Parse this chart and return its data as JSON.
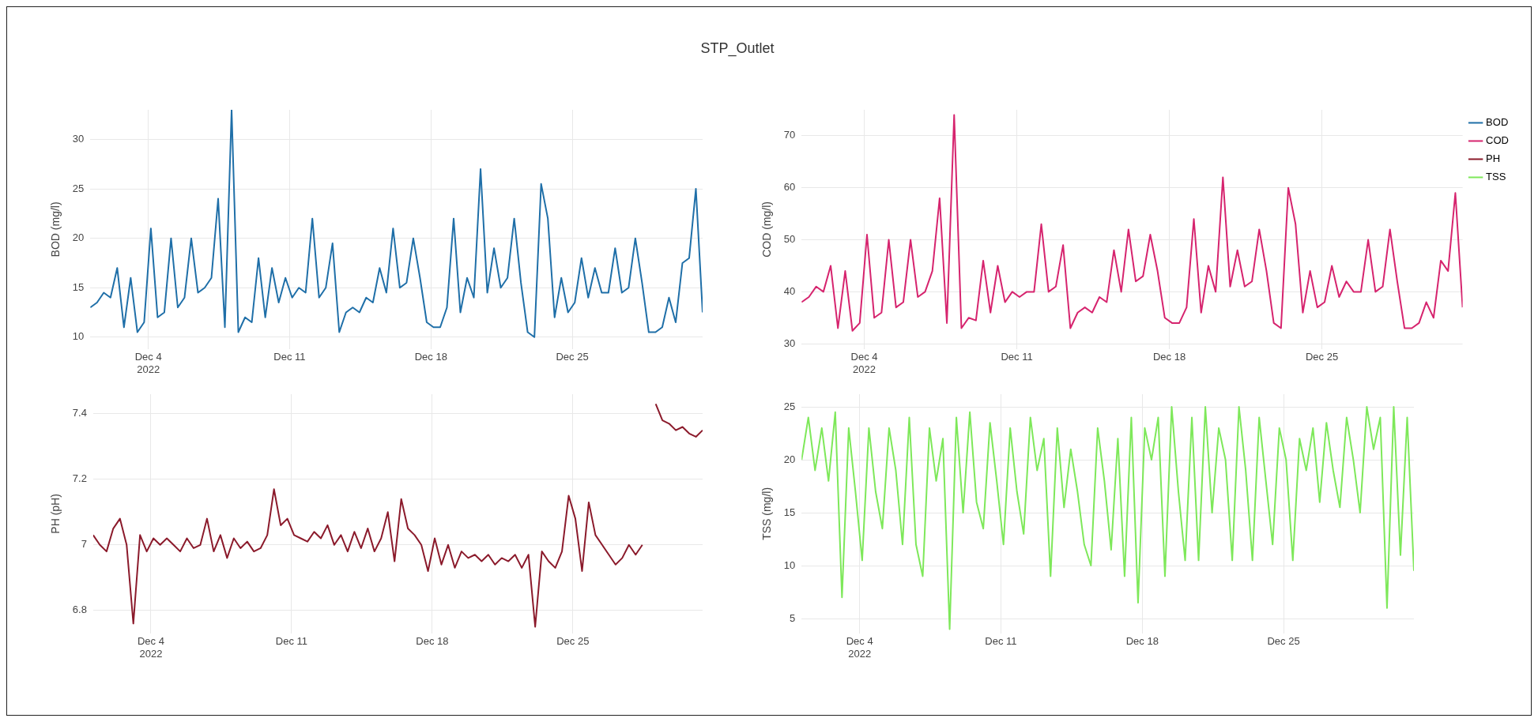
{
  "chart_data": [
    {
      "type": "line",
      "title": "STP_Outlet",
      "ylabel": "BOD (mg/l)",
      "grid": true,
      "x": [
        "2022-12-01T03:00",
        "2022-12-01T11:00",
        "2022-12-01T19:00",
        "2022-12-02T03:00",
        "2022-12-02T11:00",
        "2022-12-02T19:00",
        "2022-12-03T03:00",
        "2022-12-03T11:00",
        "2022-12-03T19:00",
        "2022-12-04T03:00",
        "2022-12-04T11:00",
        "2022-12-04T19:00",
        "2022-12-05T03:00",
        "2022-12-05T11:00",
        "2022-12-05T19:00",
        "2022-12-06T03:00",
        "2022-12-06T11:00",
        "2022-12-06T19:00",
        "2022-12-07T03:00",
        "2022-12-07T11:00",
        "2022-12-07T19:00",
        "2022-12-08T03:00",
        "2022-12-08T11:00",
        "2022-12-08T19:00",
        "2022-12-09T03:00",
        "2022-12-09T11:00",
        "2022-12-09T19:00",
        "2022-12-10T03:00",
        "2022-12-10T11:00",
        "2022-12-10T19:00",
        "2022-12-11T03:00",
        "2022-12-11T11:00",
        "2022-12-11T19:00",
        "2022-12-12T03:00",
        "2022-12-12T11:00",
        "2022-12-12T19:00",
        "2022-12-13T03:00",
        "2022-12-13T11:00",
        "2022-12-13T19:00",
        "2022-12-14T03:00",
        "2022-12-14T11:00",
        "2022-12-14T19:00",
        "2022-12-15T03:00",
        "2022-12-15T11:00",
        "2022-12-15T19:00",
        "2022-12-16T03:00",
        "2022-12-16T11:00",
        "2022-12-16T19:00",
        "2022-12-17T03:00",
        "2022-12-17T11:00",
        "2022-12-17T19:00",
        "2022-12-18T03:00",
        "2022-12-18T11:00",
        "2022-12-18T19:00",
        "2022-12-19T03:00",
        "2022-12-19T11:00",
        "2022-12-19T19:00",
        "2022-12-20T03:00",
        "2022-12-20T11:00",
        "2022-12-20T19:00",
        "2022-12-21T03:00",
        "2022-12-21T11:00",
        "2022-12-21T19:00",
        "2022-12-22T03:00",
        "2022-12-22T11:00",
        "2022-12-22T19:00",
        "2022-12-23T03:00",
        "2022-12-23T11:00",
        "2022-12-23T19:00",
        "2022-12-24T03:00",
        "2022-12-24T11:00",
        "2022-12-24T19:00",
        "2022-12-25T03:00",
        "2022-12-25T11:00",
        "2022-12-25T19:00",
        "2022-12-26T03:00",
        "2022-12-26T11:00",
        "2022-12-26T19:00",
        "2022-12-27T03:00",
        "2022-12-27T11:00",
        "2022-12-27T19:00",
        "2022-12-28T03:00",
        "2022-12-28T11:00",
        "2022-12-28T19:00",
        "2022-12-29T03:00",
        "2022-12-29T11:00",
        "2022-12-29T19:00",
        "2022-12-30T03:00",
        "2022-12-30T11:00",
        "2022-12-30T19:00",
        "2022-12-31T03:00",
        "2022-12-31T11:00"
      ],
      "xlim": [
        "2022-12-01T03:00",
        "2022-12-31T11:00"
      ],
      "xticks": [
        {
          "value": "2022-12-04",
          "label": "Dec 4\n2022"
        },
        {
          "value": "2022-12-11",
          "label": "Dec 11"
        },
        {
          "value": "2022-12-18",
          "label": "Dec 18"
        },
        {
          "value": "2022-12-25",
          "label": "Dec 25"
        }
      ],
      "ylim": [
        8.8,
        33
      ],
      "yticks": [
        10,
        15,
        20,
        25,
        30
      ],
      "series": [
        {
          "name": "BOD",
          "color": "#1f6fa8",
          "values": [
            13,
            13.5,
            14.5,
            14,
            17,
            11,
            16,
            10.5,
            11.5,
            21,
            12,
            12.5,
            20,
            13,
            14,
            20,
            14.5,
            15,
            16,
            24,
            11,
            33,
            10.5,
            12,
            11.5,
            18,
            12,
            17,
            13.5,
            16,
            14,
            15,
            14.5,
            22,
            14,
            15,
            19.5,
            10.5,
            12.5,
            13,
            12.5,
            14,
            13.5,
            17,
            14.5,
            21,
            15,
            15.5,
            20,
            16,
            11.5,
            11,
            11,
            13,
            22,
            12.5,
            16,
            14,
            27,
            14.5,
            19,
            15,
            16,
            22,
            15.5,
            10.5,
            10,
            25.5,
            22,
            12,
            16,
            12.5,
            13.5,
            18,
            14,
            17,
            14.5,
            14.5,
            19,
            14.5,
            15,
            20,
            15.5,
            10.5,
            10.5,
            11,
            14,
            11.5,
            17.5,
            18,
            25,
            12.5
          ]
        }
      ]
    },
    {
      "type": "line",
      "ylabel": "COD (mg/l)",
      "grid": true,
      "legend": "top right",
      "x": [
        "2022-12-01T03:00",
        "2022-12-01T11:00",
        "2022-12-01T19:00",
        "2022-12-02T03:00",
        "2022-12-02T11:00",
        "2022-12-02T19:00",
        "2022-12-03T03:00",
        "2022-12-03T11:00",
        "2022-12-03T19:00",
        "2022-12-04T03:00",
        "2022-12-04T11:00",
        "2022-12-04T19:00",
        "2022-12-05T03:00",
        "2022-12-05T11:00",
        "2022-12-05T19:00",
        "2022-12-06T03:00",
        "2022-12-06T11:00",
        "2022-12-06T19:00",
        "2022-12-07T03:00",
        "2022-12-07T11:00",
        "2022-12-07T19:00",
        "2022-12-08T03:00",
        "2022-12-08T11:00",
        "2022-12-08T19:00",
        "2022-12-09T03:00",
        "2022-12-09T11:00",
        "2022-12-09T19:00",
        "2022-12-10T03:00",
        "2022-12-10T11:00",
        "2022-12-10T19:00",
        "2022-12-11T03:00",
        "2022-12-11T11:00",
        "2022-12-11T19:00",
        "2022-12-12T03:00",
        "2022-12-12T11:00",
        "2022-12-12T19:00",
        "2022-12-13T03:00",
        "2022-12-13T11:00",
        "2022-12-13T19:00",
        "2022-12-14T03:00",
        "2022-12-14T11:00",
        "2022-12-14T19:00",
        "2022-12-15T03:00",
        "2022-12-15T11:00",
        "2022-12-15T19:00",
        "2022-12-16T03:00",
        "2022-12-16T11:00",
        "2022-12-16T19:00",
        "2022-12-17T03:00",
        "2022-12-17T11:00",
        "2022-12-17T19:00",
        "2022-12-18T03:00",
        "2022-12-18T11:00",
        "2022-12-18T19:00",
        "2022-12-19T03:00",
        "2022-12-19T11:00",
        "2022-12-19T19:00",
        "2022-12-20T03:00",
        "2022-12-20T11:00",
        "2022-12-20T19:00",
        "2022-12-21T03:00",
        "2022-12-21T11:00",
        "2022-12-21T19:00",
        "2022-12-22T03:00",
        "2022-12-22T11:00",
        "2022-12-22T19:00",
        "2022-12-23T03:00",
        "2022-12-23T11:00",
        "2022-12-23T19:00",
        "2022-12-24T03:00",
        "2022-12-24T11:00",
        "2022-12-24T19:00",
        "2022-12-25T03:00",
        "2022-12-25T11:00",
        "2022-12-25T19:00",
        "2022-12-26T03:00",
        "2022-12-26T11:00",
        "2022-12-26T19:00",
        "2022-12-27T03:00",
        "2022-12-27T11:00",
        "2022-12-27T19:00",
        "2022-12-28T03:00",
        "2022-12-28T11:00",
        "2022-12-28T19:00",
        "2022-12-29T03:00",
        "2022-12-29T11:00",
        "2022-12-29T19:00",
        "2022-12-30T03:00",
        "2022-12-30T11:00",
        "2022-12-30T19:00",
        "2022-12-31T03:00",
        "2022-12-31T11:00"
      ],
      "xlim": [
        "2022-12-01T03:00",
        "2022-12-31T11:00"
      ],
      "xticks": [
        {
          "value": "2022-12-04",
          "label": "Dec 4\n2022"
        },
        {
          "value": "2022-12-11",
          "label": "Dec 11"
        },
        {
          "value": "2022-12-18",
          "label": "Dec 18"
        },
        {
          "value": "2022-12-25",
          "label": "Dec 25"
        }
      ],
      "ylim": [
        29,
        75
      ],
      "yticks": [
        30,
        40,
        50,
        60,
        70
      ],
      "series": [
        {
          "name": "COD",
          "color": "#d6246e",
          "values": [
            38,
            39,
            41,
            40,
            45,
            33,
            44,
            32.5,
            34,
            51,
            35,
            36,
            50,
            37,
            38,
            50,
            39,
            40,
            44,
            58,
            34,
            74,
            33,
            35,
            34.5,
            46,
            36,
            45,
            38,
            40,
            39,
            40,
            40,
            53,
            40,
            41,
            49,
            33,
            36,
            37,
            36,
            39,
            38,
            48,
            40,
            52,
            42,
            43,
            51,
            44,
            35,
            34,
            34,
            37,
            54,
            36,
            45,
            40,
            62,
            41,
            48,
            41,
            42,
            52,
            44,
            34,
            33,
            60,
            53,
            36,
            44,
            37,
            38,
            45,
            39,
            42,
            40,
            40,
            50,
            40,
            41,
            52,
            42,
            33,
            33,
            34,
            38,
            35,
            46,
            44,
            59,
            37
          ]
        }
      ]
    },
    {
      "type": "line",
      "ylabel": "PH (pH)",
      "grid": true,
      "x": [
        "2022-12-01T03:00",
        "2022-12-01T11:00",
        "2022-12-01T19:00",
        "2022-12-02T03:00",
        "2022-12-02T11:00",
        "2022-12-02T19:00",
        "2022-12-03T03:00",
        "2022-12-03T11:00",
        "2022-12-03T19:00",
        "2022-12-04T03:00",
        "2022-12-04T11:00",
        "2022-12-04T19:00",
        "2022-12-05T03:00",
        "2022-12-05T11:00",
        "2022-12-05T19:00",
        "2022-12-06T03:00",
        "2022-12-06T11:00",
        "2022-12-06T19:00",
        "2022-12-07T03:00",
        "2022-12-07T11:00",
        "2022-12-07T19:00",
        "2022-12-08T03:00",
        "2022-12-08T11:00",
        "2022-12-08T19:00",
        "2022-12-09T03:00",
        "2022-12-09T11:00",
        "2022-12-09T19:00",
        "2022-12-10T03:00",
        "2022-12-10T11:00",
        "2022-12-10T19:00",
        "2022-12-11T03:00",
        "2022-12-11T11:00",
        "2022-12-11T19:00",
        "2022-12-12T03:00",
        "2022-12-12T11:00",
        "2022-12-12T19:00",
        "2022-12-13T03:00",
        "2022-12-13T11:00",
        "2022-12-13T19:00",
        "2022-12-14T03:00",
        "2022-12-14T11:00",
        "2022-12-14T19:00",
        "2022-12-15T03:00",
        "2022-12-15T11:00",
        "2022-12-15T19:00",
        "2022-12-16T03:00",
        "2022-12-16T11:00",
        "2022-12-16T19:00",
        "2022-12-17T03:00",
        "2022-12-17T11:00",
        "2022-12-17T19:00",
        "2022-12-18T03:00",
        "2022-12-18T11:00",
        "2022-12-18T19:00",
        "2022-12-19T03:00",
        "2022-12-19T11:00",
        "2022-12-19T19:00",
        "2022-12-20T03:00",
        "2022-12-20T11:00",
        "2022-12-20T19:00",
        "2022-12-21T03:00",
        "2022-12-21T11:00",
        "2022-12-21T19:00",
        "2022-12-22T03:00",
        "2022-12-22T11:00",
        "2022-12-22T19:00",
        "2022-12-23T03:00",
        "2022-12-23T11:00",
        "2022-12-23T19:00",
        "2022-12-24T03:00",
        "2022-12-24T11:00",
        "2022-12-24T19:00",
        "2022-12-25T03:00",
        "2022-12-25T11:00",
        "2022-12-25T19:00",
        "2022-12-26T03:00",
        "2022-12-26T11:00",
        "2022-12-26T19:00",
        "2022-12-27T03:00",
        "2022-12-27T11:00",
        "2022-12-27T19:00",
        "2022-12-28T03:00",
        "2022-12-28T11:00",
        "2022-12-28T19:00",
        "2022-12-29T03:00",
        "2022-12-29T11:00",
        "2022-12-29T19:00",
        "2022-12-30T03:00",
        "2022-12-30T11:00",
        "2022-12-30T19:00",
        "2022-12-31T03:00",
        "2022-12-31T11:00"
      ],
      "xlim": [
        "2022-12-01T03:00",
        "2022-12-31T11:00"
      ],
      "xticks": [
        {
          "value": "2022-12-04",
          "label": "Dec 4\n2022"
        },
        {
          "value": "2022-12-11",
          "label": "Dec 11"
        },
        {
          "value": "2022-12-18",
          "label": "Dec 18"
        },
        {
          "value": "2022-12-25",
          "label": "Dec 25"
        }
      ],
      "ylim": [
        6.73,
        7.46
      ],
      "yticks": [
        6.8,
        7,
        7.2,
        7.4
      ],
      "series": [
        {
          "name": "PH",
          "color": "#8b1a2b",
          "values": [
            7.03,
            7.0,
            6.98,
            7.05,
            7.08,
            7.0,
            6.76,
            7.03,
            6.98,
            7.02,
            7.0,
            7.02,
            7.0,
            6.98,
            7.02,
            6.99,
            7.0,
            7.08,
            6.98,
            7.03,
            6.96,
            7.02,
            6.99,
            7.01,
            6.98,
            6.99,
            7.03,
            7.17,
            7.06,
            7.08,
            7.03,
            7.02,
            7.01,
            7.04,
            7.02,
            7.06,
            7.0,
            7.03,
            6.98,
            7.04,
            6.99,
            7.05,
            6.98,
            7.02,
            7.1,
            6.95,
            7.14,
            7.05,
            7.03,
            7.0,
            6.92,
            7.02,
            6.94,
            7.0,
            6.93,
            6.98,
            6.96,
            6.97,
            6.95,
            6.97,
            6.94,
            6.96,
            6.95,
            6.97,
            6.93,
            6.97,
            6.75,
            6.98,
            6.95,
            6.93,
            6.98,
            7.15,
            7.08,
            6.92,
            7.13,
            7.03,
            7.0,
            6.97,
            6.94,
            6.96,
            7.0,
            6.97,
            7.0,
            null,
            7.43,
            7.38,
            7.37,
            7.35,
            7.36,
            7.34,
            7.33,
            7.35
          ]
        }
      ]
    },
    {
      "type": "line",
      "ylabel": "TSS (mg/l)",
      "grid": true,
      "x": [
        "2022-12-01T03:00",
        "2022-12-01T11:00",
        "2022-12-01T19:00",
        "2022-12-02T03:00",
        "2022-12-02T11:00",
        "2022-12-02T19:00",
        "2022-12-03T03:00",
        "2022-12-03T11:00",
        "2022-12-03T19:00",
        "2022-12-04T03:00",
        "2022-12-04T11:00",
        "2022-12-04T19:00",
        "2022-12-05T03:00",
        "2022-12-05T11:00",
        "2022-12-05T19:00",
        "2022-12-06T03:00",
        "2022-12-06T11:00",
        "2022-12-06T19:00",
        "2022-12-07T03:00",
        "2022-12-07T11:00",
        "2022-12-07T19:00",
        "2022-12-08T03:00",
        "2022-12-08T11:00",
        "2022-12-08T19:00",
        "2022-12-09T03:00",
        "2022-12-09T11:00",
        "2022-12-09T19:00",
        "2022-12-10T03:00",
        "2022-12-10T11:00",
        "2022-12-10T19:00",
        "2022-12-11T03:00",
        "2022-12-11T11:00",
        "2022-12-11T19:00",
        "2022-12-12T03:00",
        "2022-12-12T11:00",
        "2022-12-12T19:00",
        "2022-12-13T03:00",
        "2022-12-13T11:00",
        "2022-12-13T19:00",
        "2022-12-14T03:00",
        "2022-12-14T11:00",
        "2022-12-14T19:00",
        "2022-12-15T03:00",
        "2022-12-15T11:00",
        "2022-12-15T19:00",
        "2022-12-16T03:00",
        "2022-12-16T11:00",
        "2022-12-16T19:00",
        "2022-12-17T03:00",
        "2022-12-17T11:00",
        "2022-12-17T19:00",
        "2022-12-18T03:00",
        "2022-12-18T11:00",
        "2022-12-18T19:00",
        "2022-12-19T03:00",
        "2022-12-19T11:00",
        "2022-12-19T19:00",
        "2022-12-20T03:00",
        "2022-12-20T11:00",
        "2022-12-20T19:00",
        "2022-12-21T03:00",
        "2022-12-21T11:00",
        "2022-12-21T19:00",
        "2022-12-22T03:00",
        "2022-12-22T11:00",
        "2022-12-22T19:00",
        "2022-12-23T03:00",
        "2022-12-23T11:00",
        "2022-12-23T19:00",
        "2022-12-24T03:00",
        "2022-12-24T11:00",
        "2022-12-24T19:00",
        "2022-12-25T03:00",
        "2022-12-25T11:00",
        "2022-12-25T19:00",
        "2022-12-26T03:00",
        "2022-12-26T11:00",
        "2022-12-26T19:00",
        "2022-12-27T03:00",
        "2022-12-27T11:00",
        "2022-12-27T19:00",
        "2022-12-28T03:00",
        "2022-12-28T11:00",
        "2022-12-28T19:00",
        "2022-12-29T03:00",
        "2022-12-29T11:00",
        "2022-12-29T19:00",
        "2022-12-30T03:00",
        "2022-12-30T11:00",
        "2022-12-30T19:00",
        "2022-12-31T03:00",
        "2022-12-31T11:00"
      ],
      "xlim": [
        "2022-12-01T03:00",
        "2022-12-31T11:00"
      ],
      "xticks": [
        {
          "value": "2022-12-04",
          "label": "Dec 4\n2022"
        },
        {
          "value": "2022-12-11",
          "label": "Dec 11"
        },
        {
          "value": "2022-12-18",
          "label": "Dec 18"
        },
        {
          "value": "2022-12-25",
          "label": "Dec 25"
        }
      ],
      "ylim": [
        3.6,
        26.2
      ],
      "yticks": [
        5,
        10,
        15,
        20,
        25
      ],
      "series": [
        {
          "name": "TSS",
          "color": "#7ee85a",
          "values": [
            20,
            24,
            19,
            23,
            18,
            24.5,
            7,
            23,
            17,
            10.5,
            23,
            17,
            13.5,
            23,
            19,
            12,
            24,
            12,
            9,
            23,
            18,
            22,
            4,
            24,
            15,
            24.5,
            16,
            13.5,
            23.5,
            18,
            12,
            23,
            17,
            13,
            24,
            19,
            22,
            9,
            23,
            15.5,
            21,
            17,
            12,
            10,
            23,
            18,
            11.5,
            22,
            9,
            24,
            6.5,
            23,
            20,
            24,
            9,
            25,
            17,
            10.5,
            24,
            10.5,
            25,
            15,
            23,
            20,
            10.5,
            25,
            19,
            10.5,
            24,
            18,
            12,
            23,
            20,
            10.5,
            22,
            19,
            23,
            16,
            23.5,
            19,
            15.5,
            24,
            20,
            15,
            25,
            21,
            24,
            6,
            25,
            11,
            24,
            9.5
          ]
        }
      ]
    }
  ]
}
